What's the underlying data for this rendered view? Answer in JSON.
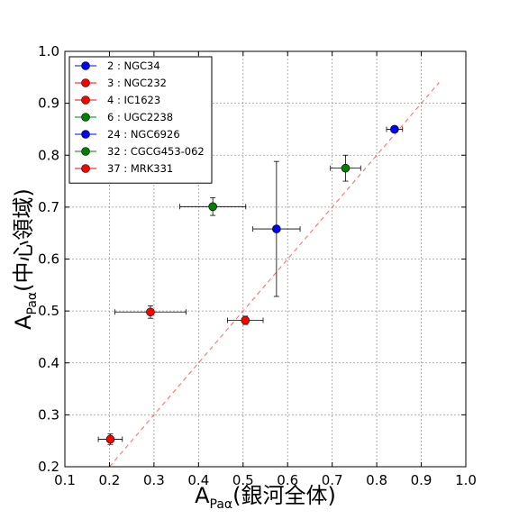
{
  "chart_data": {
    "type": "scatter",
    "title": "",
    "xlabel": {
      "main": "A",
      "sub": "Paα",
      "suffix": "(銀河全体)"
    },
    "ylabel": {
      "main": "A",
      "sub": "Paα",
      "suffix": "(中心領域)"
    },
    "xlim": [
      0.1,
      1.0
    ],
    "ylim": [
      0.2,
      1.0
    ],
    "xticks": [
      "0.1",
      "0.2",
      "0.3",
      "0.4",
      "0.5",
      "0.6",
      "0.7",
      "0.8",
      "0.9",
      "1.0"
    ],
    "yticks": [
      "0.2",
      "0.3",
      "0.4",
      "0.5",
      "0.6",
      "0.7",
      "0.8",
      "0.9",
      "1.0"
    ],
    "grid": true,
    "legend_position": "top-left",
    "one_to_one_line": {
      "color": "#ff6666",
      "x": [
        0.2,
        0.94
      ],
      "y": [
        0.2,
        0.94
      ]
    },
    "series": [
      {
        "name": "2 : NGC34",
        "color": "#0000ff",
        "x": 0.84,
        "y": 0.85,
        "xerr": 0.018,
        "yerr": 0.005
      },
      {
        "name": "3 : NGC232",
        "color": "#ff0000",
        "x": 0.505,
        "y": 0.482,
        "xerr": 0.04,
        "yerr": 0.008
      },
      {
        "name": "4 : IC1623",
        "color": "#ff0000",
        "x": 0.292,
        "y": 0.498,
        "xerr": 0.08,
        "yerr": 0.012
      },
      {
        "name": "6 : UGC2238",
        "color": "#008000",
        "x": 0.432,
        "y": 0.701,
        "xerr": 0.074,
        "yerr": 0.017
      },
      {
        "name": "24 : NGC6926",
        "color": "#0000ff",
        "x": 0.575,
        "y": 0.658,
        "xerr": 0.053,
        "yerr": 0.13
      },
      {
        "name": "32 : CGCG453-062",
        "color": "#008000",
        "x": 0.73,
        "y": 0.775,
        "xerr": 0.034,
        "yerr": 0.025
      },
      {
        "name": "37 : MRK331",
        "color": "#ff0000",
        "x": 0.202,
        "y": 0.253,
        "xerr": 0.027,
        "yerr": 0.01
      }
    ]
  }
}
